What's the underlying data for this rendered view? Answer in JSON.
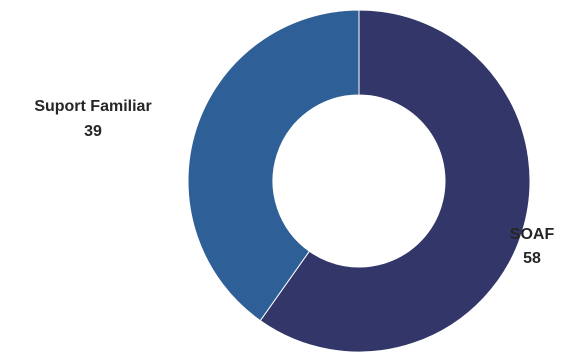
{
  "chart_data": {
    "type": "pie",
    "variant": "donut",
    "title": "",
    "slices": [
      {
        "label": "SOAF",
        "value": 58,
        "color": "#333669"
      },
      {
        "label": "Suport Familiar",
        "value": 39,
        "color": "#2e5f96"
      }
    ],
    "legend": "none",
    "data_labels": "category-and-value-outside"
  }
}
